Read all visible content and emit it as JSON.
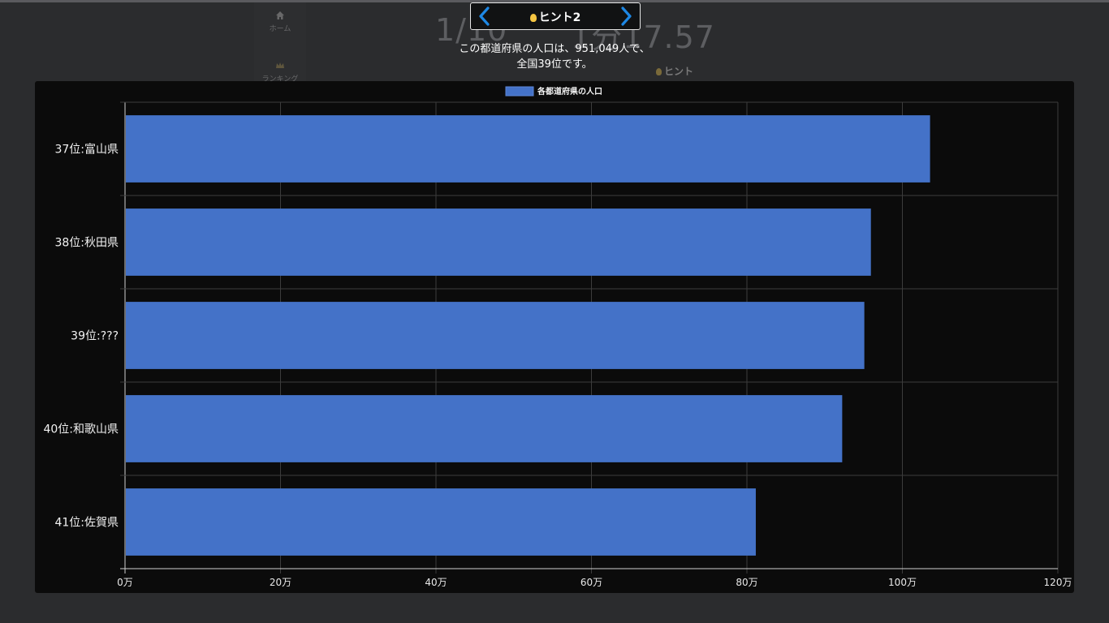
{
  "background": {
    "nav": [
      {
        "label": "ホーム",
        "icon": "home-icon"
      },
      {
        "label": "ランキング",
        "icon": "crown-icon"
      }
    ],
    "counter_left": "1/10",
    "counter_right": "1分17.57",
    "hint_label": "ヒント"
  },
  "hint_nav": {
    "title": "ヒント2",
    "prev_icon": "chevron-left-icon",
    "next_icon": "chevron-right-icon",
    "accent": "#1e88e5"
  },
  "hint_text": {
    "line1": "この都道府県の人口は、951,049人で、",
    "line2": "全国39位です。"
  },
  "chart_data": {
    "type": "bar",
    "orientation": "horizontal",
    "legend": "各都道府県の人口",
    "legend_position": "top",
    "categories": [
      "37位:富山県",
      "38位:秋田県",
      "39位:???",
      "40位:和歌山県",
      "41位:佐賀県"
    ],
    "values": [
      1035612,
      959502,
      951049,
      922584,
      811442
    ],
    "xlim": [
      0,
      1200000
    ],
    "xticks": [
      {
        "value": 0,
        "label": "0万"
      },
      {
        "value": 200000,
        "label": "20万"
      },
      {
        "value": 400000,
        "label": "40万"
      },
      {
        "value": 600000,
        "label": "60万"
      },
      {
        "value": 800000,
        "label": "80万"
      },
      {
        "value": 1000000,
        "label": "100万"
      },
      {
        "value": 1200000,
        "label": "120万"
      }
    ],
    "bar_color": "#4472c8",
    "grid": true
  }
}
